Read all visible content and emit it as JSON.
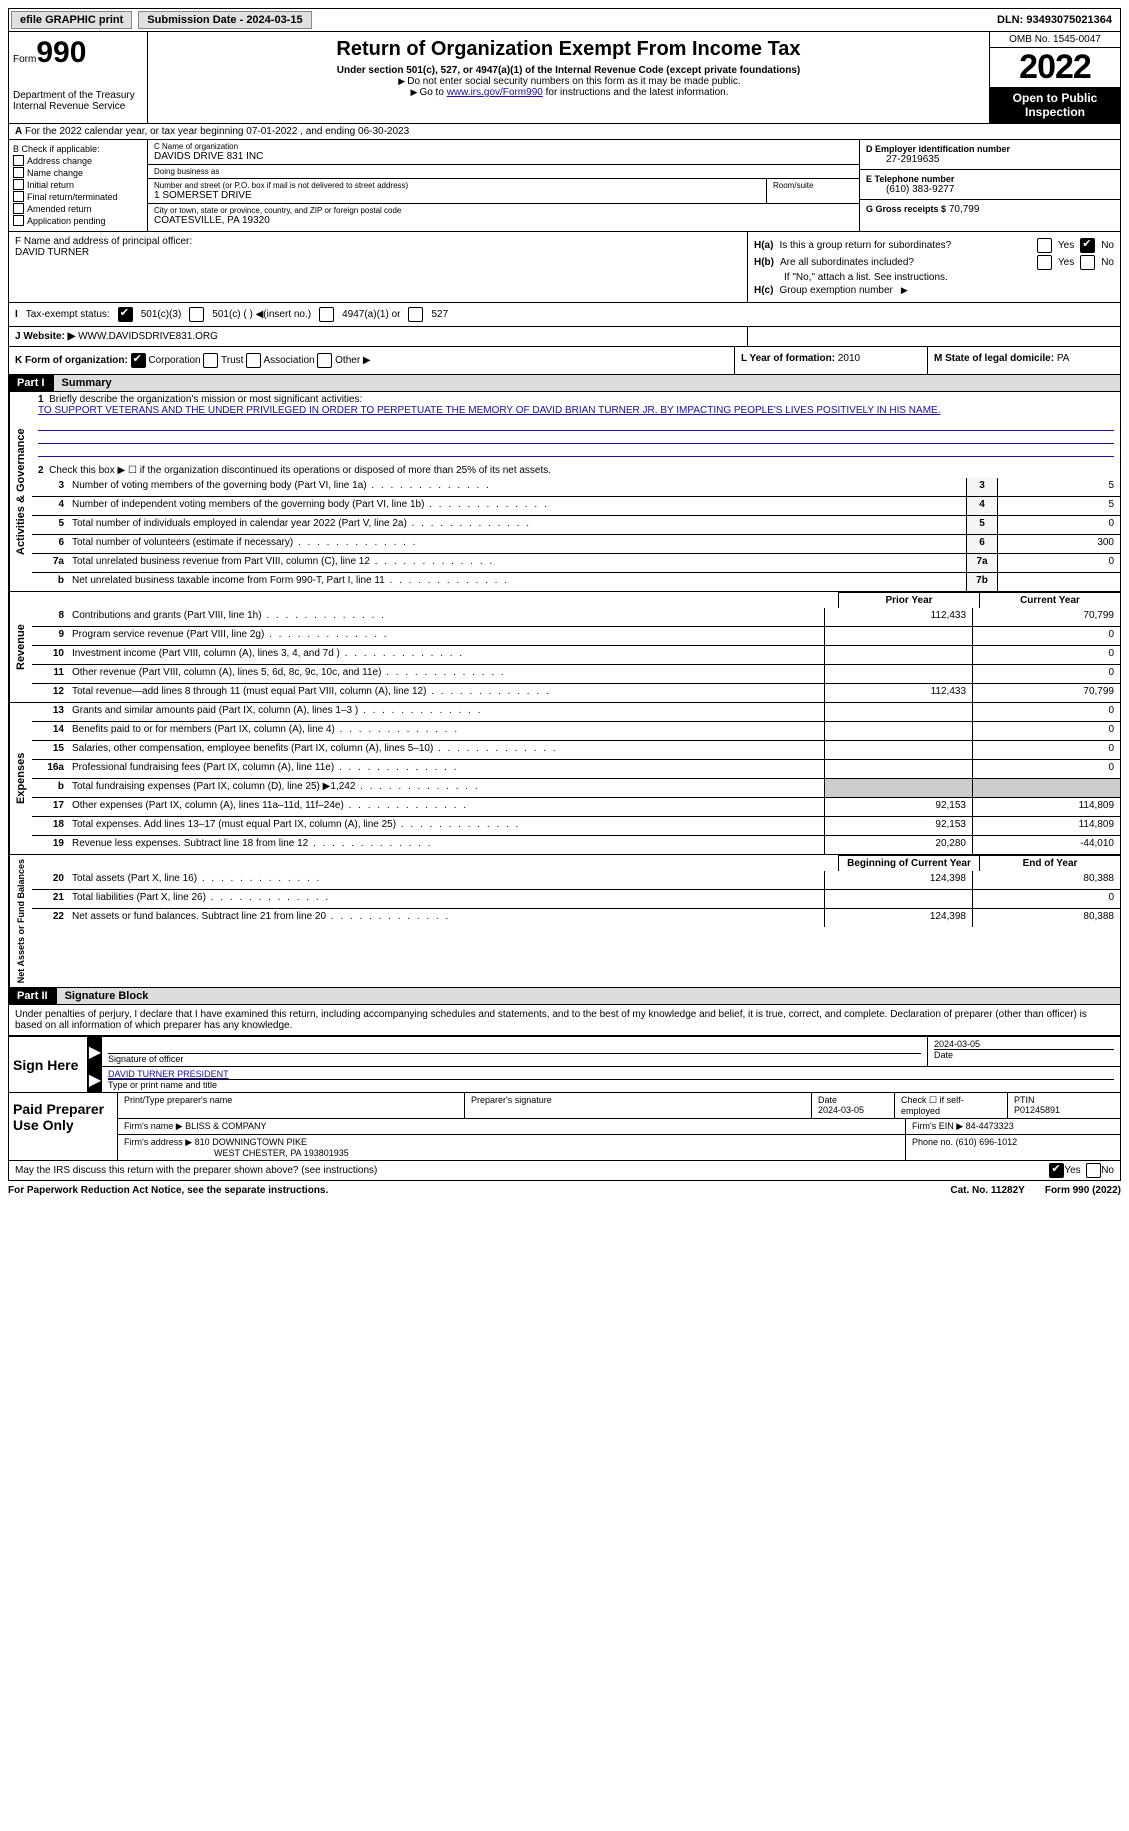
{
  "topbar": {
    "efile_label": "efile GRAPHIC print",
    "submission_label": "Submission Date - 2024-03-15",
    "dln": "DLN: 93493075021364"
  },
  "header": {
    "form_label": "Form",
    "form_number": "990",
    "dept": "Department of the Treasury",
    "irs": "Internal Revenue Service",
    "title": "Return of Organization Exempt From Income Tax",
    "subtitle": "Under section 501(c), 527, or 4947(a)(1) of the Internal Revenue Code (except private foundations)",
    "note1": "Do not enter social security numbers on this form as it may be made public.",
    "note2_pre": "Go to ",
    "note2_link": "www.irs.gov/Form990",
    "note2_post": " for instructions and the latest information.",
    "omb": "OMB No. 1545-0047",
    "year": "2022",
    "public": "Open to Public Inspection"
  },
  "rowA": "For the 2022 calendar year, or tax year beginning 07-01-2022    , and ending 06-30-2023",
  "colB": {
    "title": "B Check if applicable:",
    "items": [
      "Address change",
      "Name change",
      "Initial return",
      "Final return/terminated",
      "Amended return",
      "Application pending"
    ]
  },
  "colC": {
    "name_lbl": "C Name of organization",
    "name": "DAVIDS DRIVE 831 INC",
    "dba_lbl": "Doing business as",
    "dba": "",
    "street_lbl": "Number and street (or P.O. box if mail is not delivered to street address)",
    "street": "1 SOMERSET DRIVE",
    "room_lbl": "Room/suite",
    "room": "",
    "city_lbl": "City or town, state or province, country, and ZIP or foreign postal code",
    "city": "COATESVILLE, PA   19320"
  },
  "colDE": {
    "d_lbl": "D Employer identification number",
    "d_val": "27-2919635",
    "e_lbl": "E Telephone number",
    "e_val": "(610) 383-9277",
    "g_lbl": "G Gross receipts $",
    "g_val": "70,799"
  },
  "rowF": {
    "lbl": "F Name and address of principal officer:",
    "val": "DAVID TURNER"
  },
  "rowH": {
    "ha_q": "Is this a group return for subordinates?",
    "hb_q": "Are all subordinates included?",
    "hb_note": "If \"No,\" attach a list. See instructions.",
    "hc_q": "Group exemption number",
    "ha_lbl": "H(a)",
    "hb_lbl": "H(b)",
    "hc_lbl": "H(c)",
    "yes": "Yes",
    "no": "No"
  },
  "rowI": {
    "lbl": "Tax-exempt status:",
    "opts": [
      "501(c)(3)",
      "501(c) (  ) ◀(insert no.)",
      "4947(a)(1) or",
      "527"
    ]
  },
  "rowJ": {
    "lbl": "Website: ▶",
    "val": "WWW.DAVIDSDRIVE831.ORG"
  },
  "rowK": {
    "lbl": "K Form of organization:",
    "opts": [
      "Corporation",
      "Trust",
      "Association",
      "Other ▶"
    ]
  },
  "rowL": {
    "lbl": "L Year of formation:",
    "val": "2010"
  },
  "rowM": {
    "lbl": "M State of legal domicile:",
    "val": "PA"
  },
  "part1": {
    "header": "Part I",
    "title": "Summary",
    "line1_lbl": "Briefly describe the organization's mission or most significant activities:",
    "line1_text": "TO SUPPORT VETERANS AND THE UNDER PRIVILEGED IN ORDER TO PERPETUATE THE MEMORY OF DAVID BRIAN TURNER JR. BY IMPACTING PEOPLE'S LIVES POSITIVELY IN HIS NAME.",
    "line2": "Check this box ▶ ☐ if the organization discontinued its operations or disposed of more than 25% of its net assets.",
    "lines_ag": [
      {
        "n": "3",
        "d": "Number of voting members of the governing body (Part VI, line 1a)",
        "box": "3",
        "v": "5"
      },
      {
        "n": "4",
        "d": "Number of independent voting members of the governing body (Part VI, line 1b)",
        "box": "4",
        "v": "5"
      },
      {
        "n": "5",
        "d": "Total number of individuals employed in calendar year 2022 (Part V, line 2a)",
        "box": "5",
        "v": "0"
      },
      {
        "n": "6",
        "d": "Total number of volunteers (estimate if necessary)",
        "box": "6",
        "v": "300"
      },
      {
        "n": "7a",
        "d": "Total unrelated business revenue from Part VIII, column (C), line 12",
        "box": "7a",
        "v": "0"
      },
      {
        "n": "b",
        "d": "Net unrelated business taxable income from Form 990-T, Part I, line 11",
        "box": "7b",
        "v": ""
      }
    ],
    "prior_hdr": "Prior Year",
    "current_hdr": "Current Year",
    "revenue": [
      {
        "n": "8",
        "d": "Contributions and grants (Part VIII, line 1h)",
        "p": "112,433",
        "c": "70,799"
      },
      {
        "n": "9",
        "d": "Program service revenue (Part VIII, line 2g)",
        "p": "",
        "c": "0"
      },
      {
        "n": "10",
        "d": "Investment income (Part VIII, column (A), lines 3, 4, and 7d )",
        "p": "",
        "c": "0"
      },
      {
        "n": "11",
        "d": "Other revenue (Part VIII, column (A), lines 5, 6d, 8c, 9c, 10c, and 11e)",
        "p": "",
        "c": "0"
      },
      {
        "n": "12",
        "d": "Total revenue—add lines 8 through 11 (must equal Part VIII, column (A), line 12)",
        "p": "112,433",
        "c": "70,799"
      }
    ],
    "expenses": [
      {
        "n": "13",
        "d": "Grants and similar amounts paid (Part IX, column (A), lines 1–3 )",
        "p": "",
        "c": "0"
      },
      {
        "n": "14",
        "d": "Benefits paid to or for members (Part IX, column (A), line 4)",
        "p": "",
        "c": "0"
      },
      {
        "n": "15",
        "d": "Salaries, other compensation, employee benefits (Part IX, column (A), lines 5–10)",
        "p": "",
        "c": "0"
      },
      {
        "n": "16a",
        "d": "Professional fundraising fees (Part IX, column (A), line 11e)",
        "p": "",
        "c": "0"
      },
      {
        "n": "b",
        "d": "Total fundraising expenses (Part IX, column (D), line 25) ▶1,242",
        "p": "shade",
        "c": "shade"
      },
      {
        "n": "17",
        "d": "Other expenses (Part IX, column (A), lines 11a–11d, 11f–24e)",
        "p": "92,153",
        "c": "114,809"
      },
      {
        "n": "18",
        "d": "Total expenses. Add lines 13–17 (must equal Part IX, column (A), line 25)",
        "p": "92,153",
        "c": "114,809"
      },
      {
        "n": "19",
        "d": "Revenue less expenses. Subtract line 18 from line 12",
        "p": "20,280",
        "c": "-44,010"
      }
    ],
    "begin_hdr": "Beginning of Current Year",
    "end_hdr": "End of Year",
    "netassets": [
      {
        "n": "20",
        "d": "Total assets (Part X, line 16)",
        "p": "124,398",
        "c": "80,388"
      },
      {
        "n": "21",
        "d": "Total liabilities (Part X, line 26)",
        "p": "",
        "c": "0"
      },
      {
        "n": "22",
        "d": "Net assets or fund balances. Subtract line 21 from line 20",
        "p": "124,398",
        "c": "80,388"
      }
    ],
    "side_ag": "Activities & Governance",
    "side_rev": "Revenue",
    "side_exp": "Expenses",
    "side_na": "Net Assets or Fund Balances"
  },
  "part2": {
    "header": "Part II",
    "title": "Signature Block",
    "declaration": "Under penalties of perjury, I declare that I have examined this return, including accompanying schedules and statements, and to the best of my knowledge and belief, it is true, correct, and complete. Declaration of preparer (other than officer) is based on all information of which preparer has any knowledge.",
    "sign_here": "Sign Here",
    "sig_officer_lbl": "Signature of officer",
    "sig_date": "2024-03-05",
    "date_lbl": "Date",
    "officer_name": "DAVID TURNER  PRESIDENT",
    "officer_name_lbl": "Type or print name and title",
    "paid": "Paid Preparer Use Only",
    "prep_name_lbl": "Print/Type preparer's name",
    "prep_sig_lbl": "Preparer's signature",
    "prep_date_lbl": "Date",
    "prep_date": "2024-03-05",
    "check_self": "Check ☐ if self-employed",
    "ptin_lbl": "PTIN",
    "ptin": "P01245891",
    "firm_name_lbl": "Firm's name      ▶",
    "firm_name": "BLISS & COMPANY",
    "firm_ein_lbl": "Firm's EIN ▶",
    "firm_ein": "84-4473323",
    "firm_addr_lbl": "Firm's address ▶",
    "firm_addr": "810 DOWNINGTOWN PIKE",
    "firm_city": "WEST CHESTER, PA  193801935",
    "phone_lbl": "Phone no.",
    "phone": "(610) 696-1012"
  },
  "footer": {
    "discuss": "May the IRS discuss this return with the preparer shown above? (see instructions)",
    "yes": "Yes",
    "no": "No",
    "paperwork": "For Paperwork Reduction Act Notice, see the separate instructions.",
    "cat": "Cat. No. 11282Y",
    "form": "Form 990 (2022)"
  }
}
